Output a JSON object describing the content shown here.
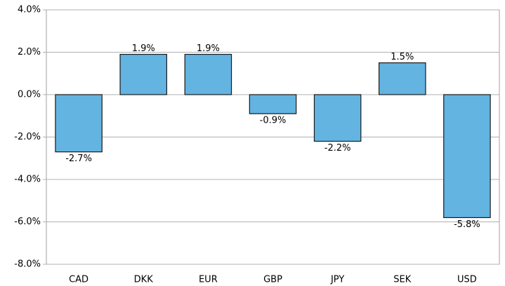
{
  "chart_data": {
    "type": "bar",
    "categories": [
      "CAD",
      "DKK",
      "EUR",
      "GBP",
      "JPY",
      "SEK",
      "USD"
    ],
    "values": [
      -2.7,
      1.9,
      1.9,
      -0.9,
      -2.2,
      1.5,
      -5.8
    ],
    "value_labels": [
      "-2.7%",
      "1.9%",
      "1.9%",
      "-0.9%",
      "-2.2%",
      "1.5%",
      "-5.8%"
    ],
    "color": "#63b4e0",
    "ylim": [
      -8,
      4
    ],
    "yticks": [
      {
        "value": 4,
        "label": "4.0%"
      },
      {
        "value": 2,
        "label": "2.0%"
      },
      {
        "value": 0,
        "label": "0.0%"
      },
      {
        "value": -2,
        "label": "-2.0%"
      },
      {
        "value": -4,
        "label": "-4.0%"
      },
      {
        "value": -6,
        "label": "-6.0%"
      },
      {
        "value": -8,
        "label": "-8.0%"
      }
    ],
    "grid": true
  }
}
